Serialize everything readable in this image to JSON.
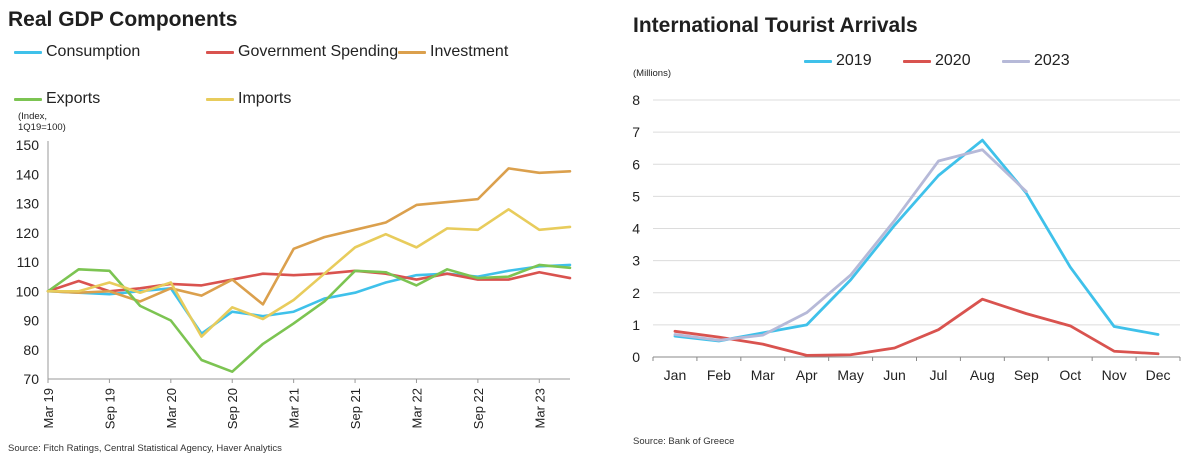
{
  "left": {
    "title": "Real GDP Components",
    "unit_label": "(Index,\n1Q19=100)",
    "source": "Source: Fitch Ratings, Central Statistical Agency, Haver Analytics"
  },
  "right": {
    "title": "International Tourist Arrivals",
    "unit_label": "(Millions)",
    "source": "Source: Bank of Greece"
  },
  "chart_data": [
    {
      "type": "line",
      "title": "Real GDP Components",
      "ylabel": "(Index, 1Q19=100)",
      "ylim": [
        70,
        150
      ],
      "yticks": [
        70,
        80,
        90,
        100,
        110,
        120,
        130,
        140,
        150
      ],
      "x": [
        "Mar 19",
        "Jun 19",
        "Sep 19",
        "Dec 19",
        "Mar 20",
        "Jun 20",
        "Sep 20",
        "Dec 20",
        "Mar 21",
        "Jun 21",
        "Sep 21",
        "Dec 21",
        "Mar 22",
        "Jun 22",
        "Sep 22",
        "Dec 22",
        "Mar 23",
        "Jun 23"
      ],
      "xtick_labels": [
        "Mar 19",
        "Sep 19",
        "Mar 20",
        "Sep 20",
        "Mar 21",
        "Sep 21",
        "Mar 22",
        "Sep 22",
        "Mar 23"
      ],
      "grid": false,
      "legend_position": "top",
      "series": [
        {
          "name": "Consumption",
          "color": "#3fc1ea",
          "values": [
            100,
            99.5,
            99,
            100,
            101,
            85.5,
            93,
            91.5,
            93,
            97.5,
            99.5,
            103,
            105.5,
            106,
            105,
            107,
            108.5,
            109
          ]
        },
        {
          "name": "Government Spending",
          "color": "#d9534f",
          "values": [
            100,
            103.5,
            100,
            101,
            102.5,
            102,
            104,
            106,
            105.5,
            106,
            107,
            106,
            104,
            106,
            104,
            104,
            106.5,
            104.5
          ]
        },
        {
          "name": "Investment",
          "color": "#dba04d",
          "values": [
            100,
            99.5,
            100,
            96.5,
            101,
            98.5,
            104,
            95.5,
            114.5,
            118.5,
            121,
            123.5,
            129.5,
            130.5,
            131.5,
            142,
            140.5,
            141
          ]
        },
        {
          "name": "Exports",
          "color": "#7cc452",
          "values": [
            100,
            107.5,
            107,
            95,
            90,
            76.5,
            72.5,
            82,
            89,
            96.5,
            107,
            106.5,
            102,
            107.5,
            104.5,
            105,
            109,
            108
          ]
        },
        {
          "name": "Imports",
          "color": "#e8cc5c",
          "values": [
            100,
            100,
            103,
            99.5,
            103,
            84.5,
            94.5,
            90.5,
            97,
            106,
            115,
            119.5,
            115,
            121.5,
            121,
            128,
            121,
            122
          ]
        }
      ]
    },
    {
      "type": "line",
      "title": "International Tourist Arrivals",
      "ylabel": "(Millions)",
      "ylim": [
        0,
        8
      ],
      "yticks": [
        0,
        1,
        2,
        3,
        4,
        5,
        6,
        7,
        8
      ],
      "categories": [
        "Jan",
        "Feb",
        "Mar",
        "Apr",
        "May",
        "Jun",
        "Jul",
        "Aug",
        "Sep",
        "Oct",
        "Nov",
        "Dec"
      ],
      "grid": true,
      "legend_position": "top",
      "series": [
        {
          "name": "2019",
          "color": "#3fc1ea",
          "values": [
            0.65,
            0.5,
            0.75,
            1.0,
            2.4,
            4.1,
            5.65,
            6.75,
            5.1,
            2.8,
            0.95,
            0.7
          ]
        },
        {
          "name": "2020",
          "color": "#d9534f",
          "values": [
            0.8,
            0.62,
            0.4,
            0.05,
            0.07,
            0.28,
            0.85,
            1.8,
            1.35,
            0.97,
            0.18,
            0.1
          ]
        },
        {
          "name": "2023",
          "color": "#b6b9d8",
          "values": [
            0.7,
            0.52,
            0.68,
            1.38,
            2.55,
            4.25,
            6.1,
            6.45,
            5.15,
            null,
            null,
            null
          ]
        }
      ]
    }
  ]
}
